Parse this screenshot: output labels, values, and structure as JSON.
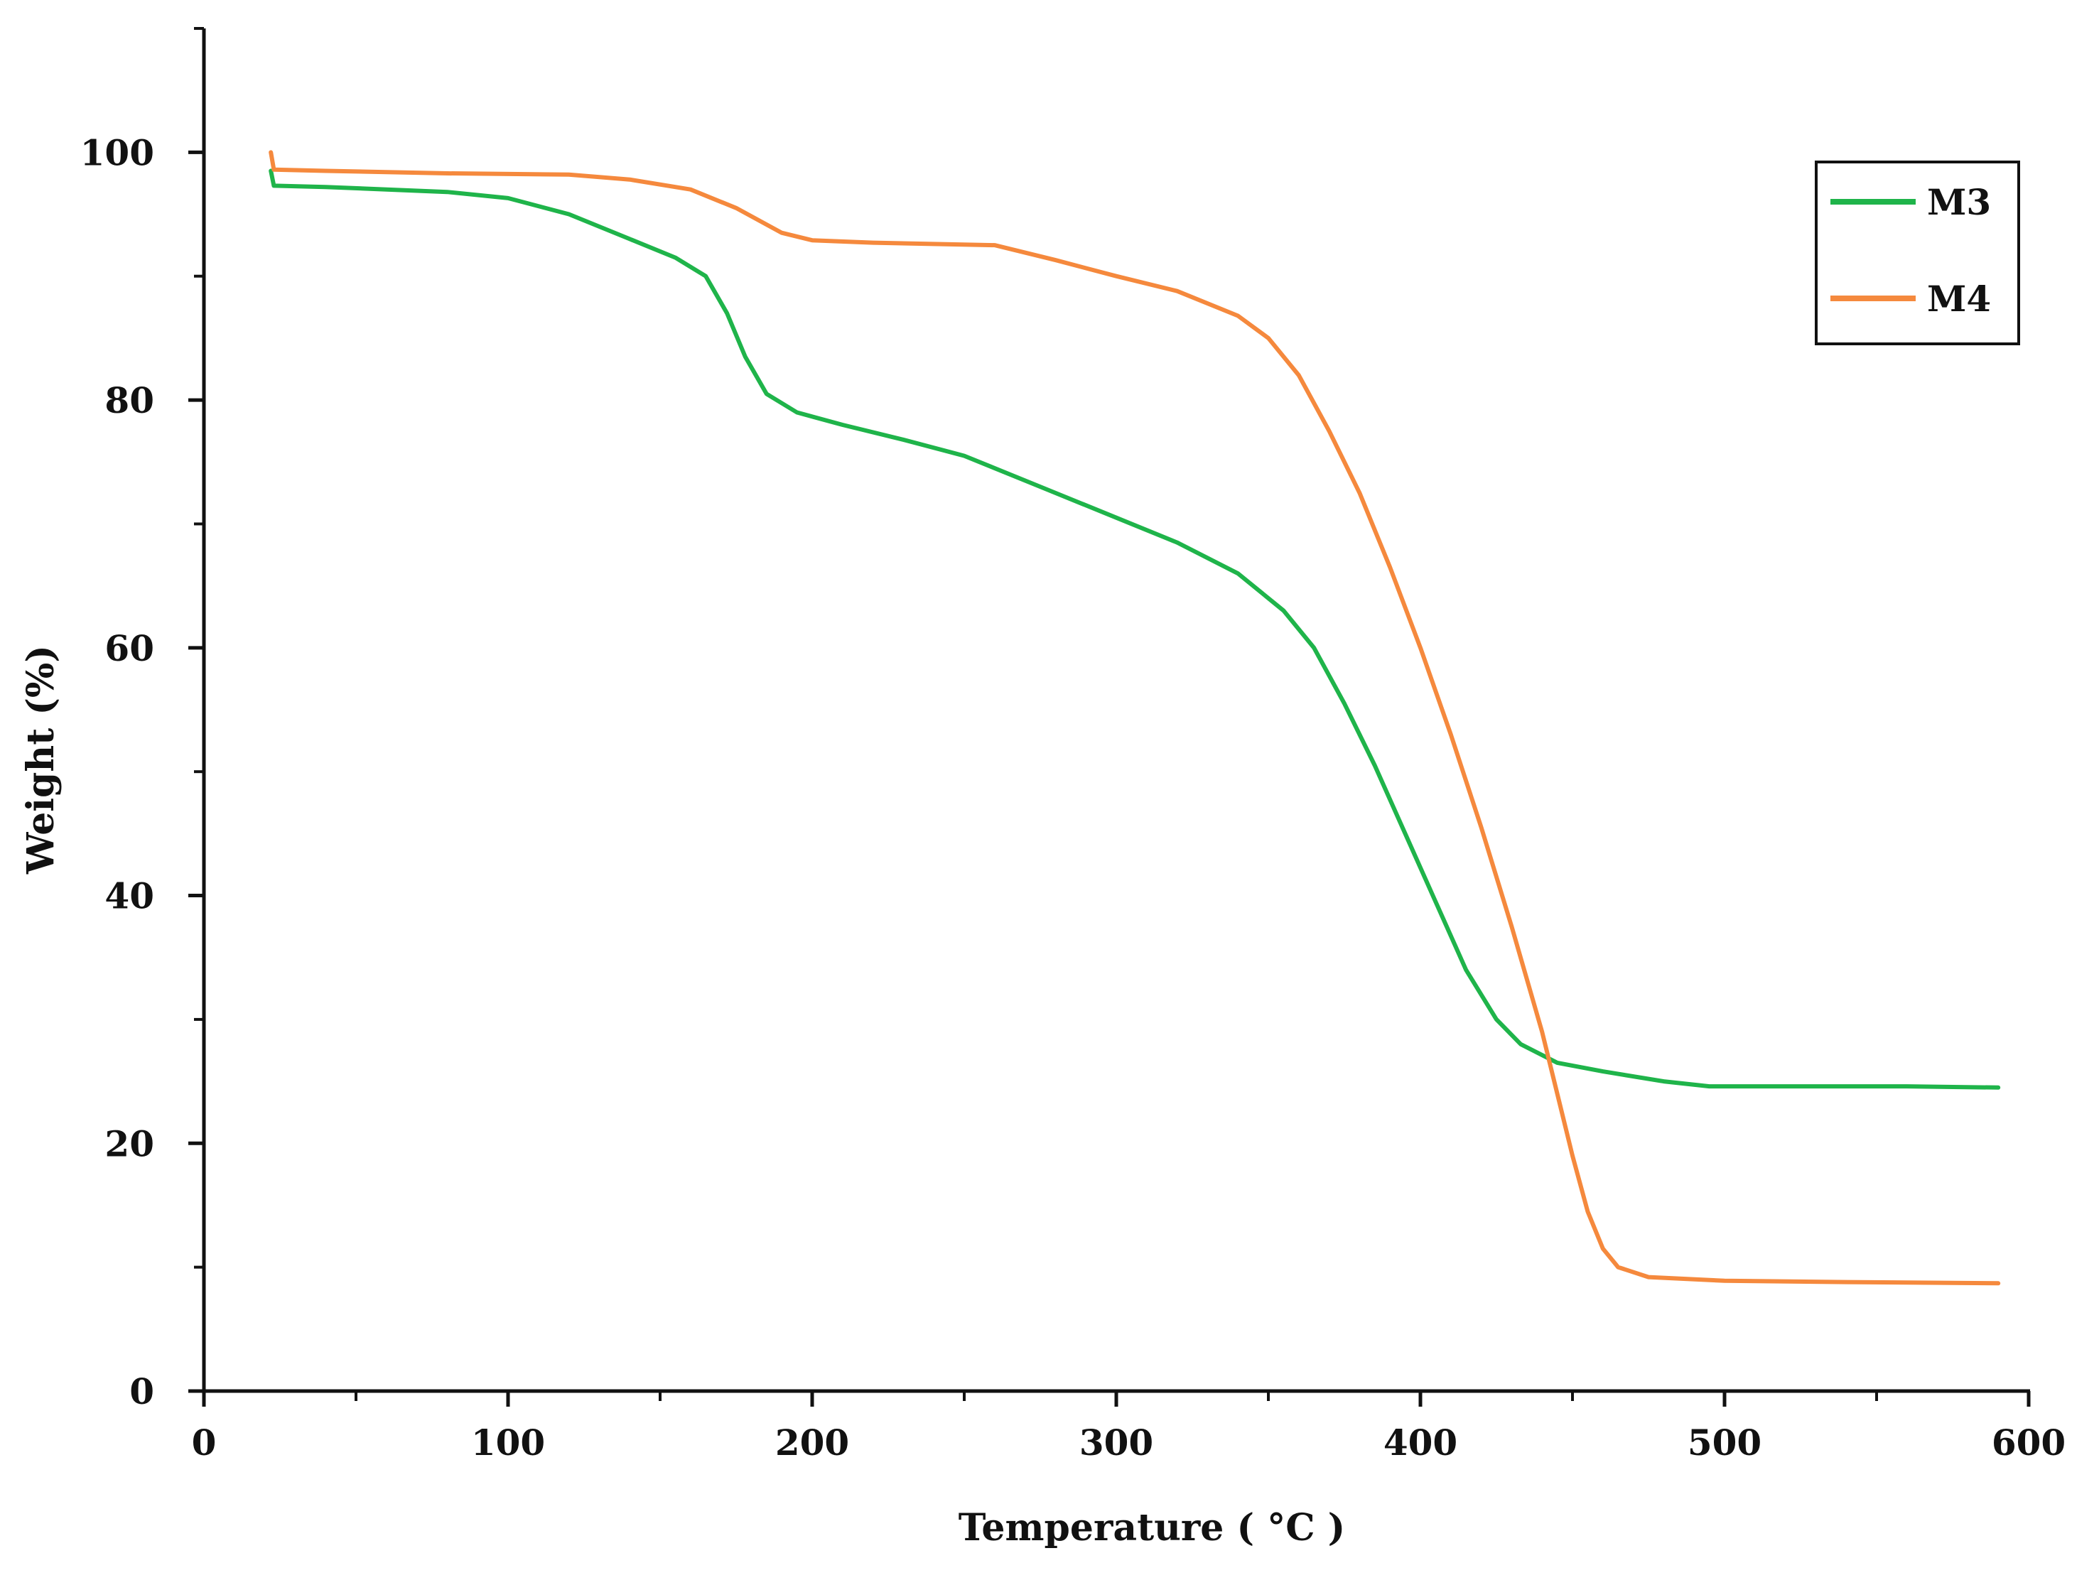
{
  "chart_data": {
    "type": "line",
    "title": "",
    "xlabel": "Temperature ( °C )",
    "ylabel": "Weight (%)",
    "xlim": [
      0,
      600
    ],
    "ylim": [
      0,
      110
    ],
    "x_ticks": [
      0,
      100,
      200,
      300,
      400,
      500,
      600
    ],
    "x_tick_labels": [
      "0",
      "100",
      "200",
      "300",
      "400",
      "500",
      "600"
    ],
    "x_minor_ticks": [
      50,
      150,
      250,
      350,
      450,
      550
    ],
    "y_ticks": [
      0,
      20,
      40,
      60,
      80,
      100
    ],
    "y_tick_labels": [
      "0",
      "20",
      "40",
      "60",
      "80",
      "100"
    ],
    "y_minor_ticks": [
      10,
      30,
      50,
      70,
      90,
      110
    ],
    "grid": false,
    "legend_position": "top-right",
    "series": [
      {
        "name": "M3",
        "color": "#1fb44a",
        "points": [
          [
            22,
            98.5
          ],
          [
            23,
            97.3
          ],
          [
            40,
            97.2
          ],
          [
            80,
            96.8
          ],
          [
            100,
            96.3
          ],
          [
            120,
            95
          ],
          [
            140,
            93
          ],
          [
            155,
            91.5
          ],
          [
            165,
            90
          ],
          [
            172,
            87
          ],
          [
            178,
            83.5
          ],
          [
            185,
            80.5
          ],
          [
            195,
            79
          ],
          [
            210,
            78
          ],
          [
            230,
            76.8
          ],
          [
            250,
            75.5
          ],
          [
            275,
            73
          ],
          [
            300,
            70.5
          ],
          [
            320,
            68.5
          ],
          [
            340,
            66
          ],
          [
            355,
            63
          ],
          [
            365,
            60
          ],
          [
            375,
            55.5
          ],
          [
            385,
            50.5
          ],
          [
            395,
            45
          ],
          [
            405,
            39.5
          ],
          [
            415,
            34
          ],
          [
            425,
            30
          ],
          [
            433,
            28
          ],
          [
            445,
            26.5
          ],
          [
            460,
            25.8
          ],
          [
            480,
            25
          ],
          [
            495,
            24.6
          ],
          [
            520,
            24.6
          ],
          [
            560,
            24.6
          ],
          [
            590,
            24.5
          ]
        ]
      },
      {
        "name": "M4",
        "color": "#f5893d",
        "points": [
          [
            22,
            100
          ],
          [
            23,
            98.6
          ],
          [
            40,
            98.5
          ],
          [
            80,
            98.3
          ],
          [
            120,
            98.2
          ],
          [
            140,
            97.8
          ],
          [
            160,
            97
          ],
          [
            175,
            95.5
          ],
          [
            190,
            93.5
          ],
          [
            200,
            92.9
          ],
          [
            220,
            92.7
          ],
          [
            260,
            92.5
          ],
          [
            280,
            91.3
          ],
          [
            300,
            90
          ],
          [
            320,
            88.8
          ],
          [
            340,
            86.8
          ],
          [
            350,
            85
          ],
          [
            360,
            82
          ],
          [
            370,
            77.5
          ],
          [
            380,
            72.5
          ],
          [
            390,
            66.5
          ],
          [
            400,
            60
          ],
          [
            410,
            53
          ],
          [
            420,
            45.5
          ],
          [
            430,
            37.5
          ],
          [
            440,
            29
          ],
          [
            445,
            24
          ],
          [
            450,
            19
          ],
          [
            455,
            14.5
          ],
          [
            460,
            11.5
          ],
          [
            465,
            10
          ],
          [
            475,
            9.2
          ],
          [
            500,
            8.9
          ],
          [
            540,
            8.8
          ],
          [
            590,
            8.7
          ]
        ]
      }
    ]
  },
  "colors": {
    "axis": "#111111",
    "m3": "#1fb44a",
    "m4": "#f5893d"
  }
}
